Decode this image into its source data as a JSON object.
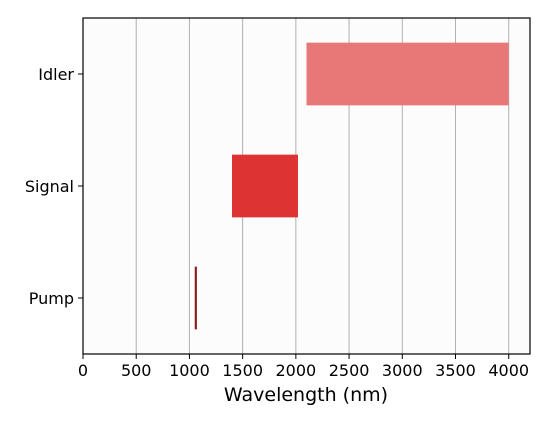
{
  "chart_data": {
    "type": "bar",
    "orientation": "horizontal",
    "xlabel": "Wavelength (nm)",
    "ylabel": "",
    "title": "",
    "xlim": [
      0,
      4200
    ],
    "xticks": [
      0,
      500,
      1000,
      1500,
      2000,
      2500,
      3000,
      3500,
      4000
    ],
    "grid": "vertical",
    "legend": "none",
    "categories": [
      "Pump",
      "Signal",
      "Idler"
    ],
    "bars": [
      {
        "category": "Pump",
        "start": 1050,
        "end": 1070,
        "color": "#8b1a1a"
      },
      {
        "category": "Signal",
        "start": 1400,
        "end": 2020,
        "color": "#dd3333"
      },
      {
        "category": "Idler",
        "start": 2100,
        "end": 4000,
        "color": "#e87878"
      }
    ]
  }
}
